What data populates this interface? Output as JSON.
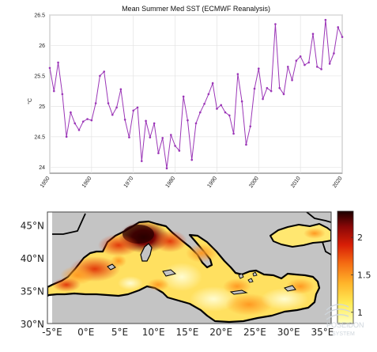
{
  "chart_data": [
    {
      "type": "line",
      "title": "Mean Summer Med SST (ECMWF Reanalysis)",
      "ylabel": "°C",
      "xlabel": "",
      "xlim": [
        1950,
        2020
      ],
      "ylim": [
        23.9,
        26.5
      ],
      "xticks": [
        1950,
        1960,
        1970,
        1980,
        1990,
        2000,
        2010,
        2020
      ],
      "yticks": [
        24,
        24.5,
        25,
        25.5,
        26,
        26.5
      ],
      "xtick_labels": [
        "1950",
        "1960",
        "1970",
        "1980",
        "1990",
        "2000",
        "2010",
        "2020"
      ],
      "ytick_labels": [
        "24",
        "24.5",
        "25",
        "25.5",
        "26",
        "26.5"
      ],
      "grid": true,
      "series": [
        {
          "color": "#9b36b7",
          "x": [
            1950,
            1951,
            1952,
            1953,
            1954,
            1955,
            1956,
            1957,
            1958,
            1959,
            1960,
            1961,
            1962,
            1963,
            1964,
            1965,
            1966,
            1967,
            1968,
            1969,
            1970,
            1971,
            1972,
            1973,
            1974,
            1975,
            1976,
            1977,
            1978,
            1979,
            1980,
            1981,
            1982,
            1983,
            1984,
            1985,
            1986,
            1987,
            1988,
            1989,
            1990,
            1991,
            1992,
            1993,
            1994,
            1995,
            1996,
            1997,
            1998,
            1999,
            2000,
            2001,
            2002,
            2003,
            2004,
            2005,
            2006,
            2007,
            2008,
            2009,
            2010,
            2011,
            2012,
            2013,
            2014,
            2015,
            2016,
            2017,
            2018,
            2019,
            2020
          ],
          "y": [
            25.63,
            25.25,
            25.72,
            25.2,
            24.5,
            24.9,
            24.72,
            24.61,
            24.75,
            24.79,
            24.77,
            25.05,
            25.5,
            25.57,
            25.05,
            24.86,
            24.98,
            25.28,
            24.78,
            24.49,
            24.93,
            24.98,
            24.1,
            24.76,
            24.49,
            24.72,
            24.23,
            24.48,
            23.98,
            24.53,
            24.35,
            24.27,
            25.16,
            24.77,
            24.12,
            24.72,
            24.9,
            25.04,
            25.2,
            25.38,
            24.96,
            25.02,
            24.9,
            24.85,
            24.55,
            25.53,
            25.08,
            24.37,
            24.67,
            25.29,
            25.62,
            25.12,
            25.3,
            25.25,
            26.35,
            25.3,
            25.2,
            25.65,
            25.43,
            25.75,
            25.82,
            25.68,
            25.72,
            26.19,
            25.65,
            25.61,
            26.42,
            25.7,
            25.87,
            26.3,
            26.14
          ]
        }
      ]
    },
    {
      "type": "heatmap",
      "title": "",
      "xlim": [
        -5,
        37
      ],
      "ylim": [
        30,
        47
      ],
      "xtick_labels": [
        "-5°E",
        "0°E",
        "5°E",
        "10°E",
        "15°E",
        "20°E",
        "25°E",
        "30°E",
        "35°E"
      ],
      "ytick_labels": [
        "30°N",
        "35°N",
        "40°N",
        "45°N"
      ],
      "colorbar": {
        "ticks": [
          1,
          1.5,
          2
        ],
        "tick_labels": [
          "1",
          "1.5",
          "2"
        ],
        "range": [
          0.85,
          2.35
        ],
        "colors": [
          "#ffffbe",
          "#ffeb55",
          "#ffb42a",
          "#f46a12",
          "#d81e06",
          "#8b0707",
          "#1a0000"
        ]
      },
      "land_color": "#c4c4c4"
    }
  ],
  "watermark": {
    "line1": "POSEIDON",
    "line2": "SYSTEM"
  }
}
